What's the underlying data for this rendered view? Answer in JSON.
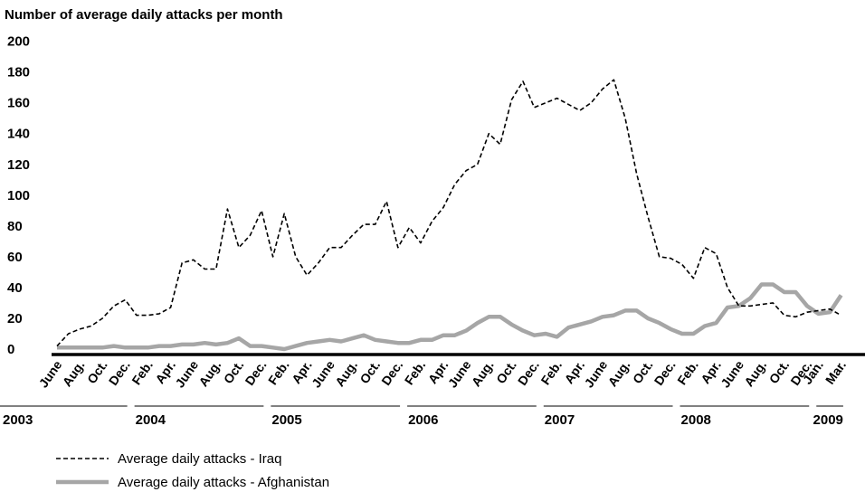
{
  "chart_data": {
    "type": "line",
    "title": "Number of average daily attacks per month",
    "xlabel": "",
    "ylabel": "",
    "ylim": [
      0,
      200
    ],
    "yticks": [
      0,
      20,
      40,
      60,
      80,
      100,
      120,
      140,
      160,
      180,
      200
    ],
    "grid": false,
    "legend_position": "bottom-left",
    "x_start": "2003-06",
    "x_tick_labels": [
      "June",
      "Aug.",
      "Oct.",
      "Dec.",
      "Feb.",
      "Apr.",
      "June",
      "Aug.",
      "Oct.",
      "Dec.",
      "Feb.",
      "Apr.",
      "June",
      "Aug.",
      "Oct.",
      "Dec.",
      "Feb.",
      "Apr.",
      "June",
      "Aug.",
      "Oct.",
      "Dec.",
      "Feb.",
      "Apr.",
      "June",
      "Aug.",
      "Oct.",
      "Dec.",
      "Feb.",
      "Apr.",
      "June",
      "Aug.",
      "Oct.",
      "Dec.",
      "Jan.",
      "Mar."
    ],
    "x_tick_dates": [
      "2003-06",
      "2003-08",
      "2003-10",
      "2003-12",
      "2004-02",
      "2004-04",
      "2004-06",
      "2004-08",
      "2004-10",
      "2004-12",
      "2005-02",
      "2005-04",
      "2005-06",
      "2005-08",
      "2005-10",
      "2005-12",
      "2006-02",
      "2006-04",
      "2006-06",
      "2006-08",
      "2006-10",
      "2006-12",
      "2007-02",
      "2007-04",
      "2007-06",
      "2007-08",
      "2007-10",
      "2007-12",
      "2008-02",
      "2008-04",
      "2008-06",
      "2008-08",
      "2008-10",
      "2008-12",
      "2009-01",
      "2009-03"
    ],
    "years": [
      {
        "label": "2003",
        "from": "2003-06",
        "to": "2003-12"
      },
      {
        "label": "2004",
        "from": "2004-01",
        "to": "2004-12"
      },
      {
        "label": "2005",
        "from": "2005-01",
        "to": "2005-12"
      },
      {
        "label": "2006",
        "from": "2006-01",
        "to": "2006-12"
      },
      {
        "label": "2007",
        "from": "2007-01",
        "to": "2007-12"
      },
      {
        "label": "2008",
        "from": "2008-01",
        "to": "2008-12"
      },
      {
        "label": "2009",
        "from": "2009-01",
        "to": "2009-03"
      }
    ],
    "series": [
      {
        "name": "Average daily attacks - Iraq",
        "style": "dashed",
        "color": "#000000",
        "values": [
          2,
          10,
          13,
          15,
          20,
          28,
          32,
          22,
          22,
          23,
          27,
          56,
          58,
          52,
          52,
          91,
          66,
          74,
          90,
          60,
          88,
          60,
          48,
          56,
          66,
          66,
          74,
          81,
          81,
          96,
          66,
          79,
          69,
          83,
          92,
          107,
          116,
          120,
          140,
          133,
          162,
          174,
          157,
          160,
          163,
          159,
          155,
          160,
          169,
          175,
          150,
          114,
          86,
          60,
          59,
          55,
          46,
          66,
          62,
          40,
          28,
          28,
          29,
          30,
          22,
          21,
          24,
          25,
          26,
          22
        ],
        "x_dates": [
          "2003-06",
          "2003-07",
          "2003-08",
          "2003-09",
          "2003-10",
          "2003-11",
          "2003-12",
          "2004-01",
          "2004-02",
          "2004-03",
          "2004-04",
          "2004-05",
          "2004-06",
          "2004-07",
          "2004-08",
          "2004-09",
          "2004-10",
          "2004-11",
          "2004-12",
          "2005-01",
          "2005-02",
          "2005-03",
          "2005-04",
          "2005-05",
          "2005-06",
          "2005-07",
          "2005-08",
          "2005-09",
          "2005-10",
          "2005-11",
          "2005-12",
          "2006-01",
          "2006-02",
          "2006-03",
          "2006-04",
          "2006-05",
          "2006-06",
          "2006-07",
          "2006-08",
          "2006-09",
          "2006-10",
          "2006-11",
          "2006-12",
          "2007-01",
          "2007-02",
          "2007-03",
          "2007-04",
          "2007-05",
          "2007-06",
          "2007-07",
          "2007-08",
          "2007-09",
          "2007-10",
          "2007-11",
          "2007-12",
          "2008-01",
          "2008-02",
          "2008-03",
          "2008-04",
          "2008-05",
          "2008-06",
          "2008-07",
          "2008-08",
          "2008-09",
          "2008-10",
          "2008-11",
          "2008-12",
          "2009-01",
          "2009-02",
          "2009-03"
        ]
      },
      {
        "name": "Average daily attacks - Afghanistan",
        "style": "solid",
        "color": "#a6a6a6",
        "values": [
          1,
          1,
          1,
          1,
          1,
          2,
          1,
          1,
          1,
          2,
          2,
          3,
          3,
          4,
          3,
          4,
          7,
          2,
          2,
          1,
          0,
          2,
          4,
          5,
          6,
          5,
          7,
          9,
          6,
          5,
          4,
          4,
          6,
          6,
          9,
          9,
          12,
          17,
          21,
          21,
          16,
          12,
          9,
          10,
          8,
          14,
          16,
          18,
          21,
          22,
          25,
          25,
          20,
          17,
          13,
          10,
          10,
          15,
          17,
          27,
          28,
          33,
          42,
          42,
          37,
          37,
          28,
          23,
          24,
          35
        ],
        "x_dates": [
          "2003-06",
          "2003-07",
          "2003-08",
          "2003-09",
          "2003-10",
          "2003-11",
          "2003-12",
          "2004-01",
          "2004-02",
          "2004-03",
          "2004-04",
          "2004-05",
          "2004-06",
          "2004-07",
          "2004-08",
          "2004-09",
          "2004-10",
          "2004-11",
          "2004-12",
          "2005-01",
          "2005-02",
          "2005-03",
          "2005-04",
          "2005-05",
          "2005-06",
          "2005-07",
          "2005-08",
          "2005-09",
          "2005-10",
          "2005-11",
          "2005-12",
          "2006-01",
          "2006-02",
          "2006-03",
          "2006-04",
          "2006-05",
          "2006-06",
          "2006-07",
          "2006-08",
          "2006-09",
          "2006-10",
          "2006-11",
          "2006-12",
          "2007-01",
          "2007-02",
          "2007-03",
          "2007-04",
          "2007-05",
          "2007-06",
          "2007-07",
          "2007-08",
          "2007-09",
          "2007-10",
          "2007-11",
          "2007-12",
          "2008-01",
          "2008-02",
          "2008-03",
          "2008-04",
          "2008-05",
          "2008-06",
          "2008-07",
          "2008-08",
          "2008-09",
          "2008-10",
          "2008-11",
          "2008-12",
          "2009-01",
          "2009-02",
          "2009-03"
        ]
      }
    ]
  }
}
